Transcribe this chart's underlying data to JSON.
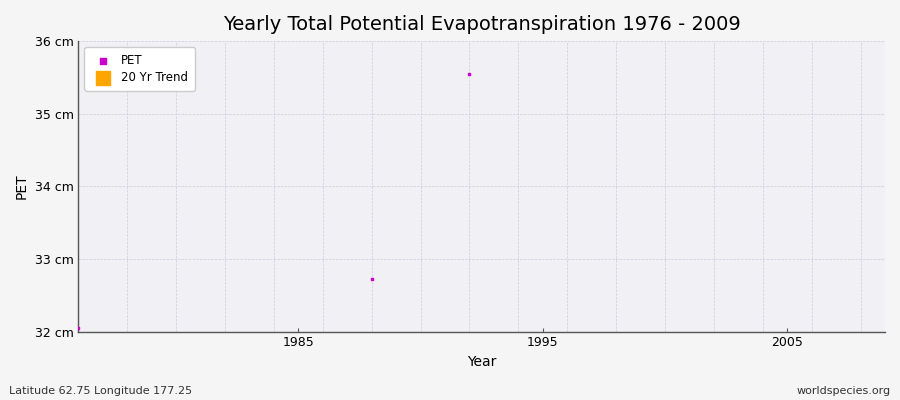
{
  "title": "Yearly Total Potential Evapotranspiration 1976 - 2009",
  "xlabel": "Year",
  "ylabel": "PET",
  "footer_left": "Latitude 62.75 Longitude 177.25",
  "footer_right": "worldspecies.org",
  "xlim": [
    1976,
    2009
  ],
  "ylim": [
    32,
    36
  ],
  "yticks": [
    32,
    33,
    34,
    35,
    36
  ],
  "ytick_labels": [
    "32 cm",
    "33 cm",
    "34 cm",
    "35 cm",
    "36 cm"
  ],
  "xticks": [
    1985,
    1995,
    2005
  ],
  "pet_years": [
    1976,
    1988,
    1992
  ],
  "pet_values": [
    32.05,
    32.73,
    35.55
  ],
  "trend_years": [],
  "trend_values": [],
  "pet_color": "#cc00cc",
  "trend_color": "#ffa500",
  "bg_color": "#f5f5f5",
  "plot_bg_color": "#f0f0f5",
  "grid_color": "#ccccdd",
  "spine_color": "#555555",
  "title_fontsize": 14,
  "axis_label_fontsize": 10,
  "tick_fontsize": 9,
  "footer_fontsize": 8,
  "marker_size": 4
}
